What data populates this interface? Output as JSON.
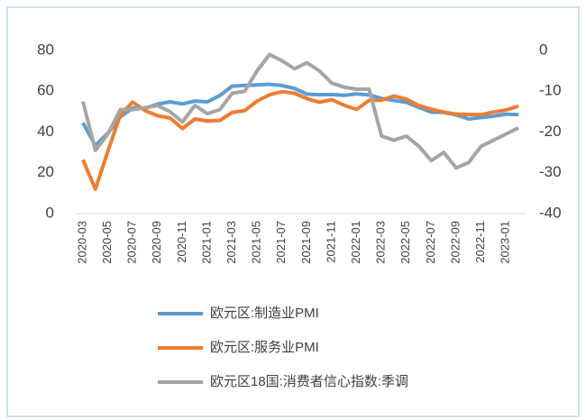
{
  "chart_data": {
    "type": "line",
    "categories": [
      "2020-03",
      null,
      "2020-05",
      null,
      "2020-07",
      null,
      "2020-09",
      null,
      "2020-11",
      null,
      "2021-01",
      null,
      "2021-03",
      null,
      "2021-05",
      null,
      "2021-07",
      null,
      "2021-09",
      null,
      "2021-11",
      null,
      "2022-01",
      null,
      "2022-03",
      null,
      "2022-05",
      null,
      "2022-07",
      null,
      "2022-09",
      null,
      "2022-11",
      null,
      "2023-01",
      null
    ],
    "series": [
      {
        "name": "欧元区:制造业PMI",
        "color": "#5b9bd5",
        "values": [
          44.5,
          33.4,
          39.4,
          47.4,
          51.8,
          51.7,
          53.7,
          54.8,
          53.8,
          55.2,
          54.8,
          57.9,
          62.5,
          62.9,
          63.1,
          63.4,
          62.8,
          61.4,
          58.6,
          58.3,
          58.4,
          58.0,
          58.7,
          58.2,
          56.5,
          55.5,
          54.6,
          52.1,
          49.8,
          49.6,
          48.4,
          46.4,
          47.1,
          47.8,
          48.8,
          48.5
        ]
      },
      {
        "name": "欧元区:服务业PMI",
        "color": "#ed7d31",
        "values": [
          26.4,
          12.0,
          30.5,
          48.3,
          54.7,
          50.5,
          48.0,
          46.9,
          41.7,
          46.4,
          45.4,
          45.7,
          49.6,
          50.5,
          55.2,
          58.3,
          59.8,
          59.0,
          56.4,
          54.6,
          55.9,
          53.1,
          51.1,
          55.5,
          55.6,
          57.7,
          56.1,
          53.0,
          51.2,
          49.8,
          48.8,
          48.6,
          48.5,
          49.8,
          50.8,
          52.7
        ]
      },
      {
        "name": "欧元区18国:消费者信心指数:季调",
        "color": "#a5a5a5",
        "axis": "y2",
        "values": [
          -12.5,
          -24.5,
          -20.5,
          -14.5,
          -14.5,
          -14,
          -13.5,
          -15,
          -17.5,
          -13.5,
          -15.5,
          -14.5,
          -10.5,
          -10,
          -5,
          -1,
          -2.5,
          -4.5,
          -3,
          -5,
          -8,
          -9,
          -9.5,
          -9.5,
          -21,
          -22,
          -21,
          -23.5,
          -27,
          -25,
          -28.8,
          -27.5,
          -23.5,
          -22,
          -20.5,
          -19
        ]
      }
    ],
    "ylim": [
      0,
      80
    ],
    "yticks": [
      0,
      20,
      40,
      60,
      80
    ],
    "y2lim": [
      -40,
      0
    ],
    "y2ticks": [
      -40,
      -30,
      -20,
      -10,
      0
    ]
  }
}
